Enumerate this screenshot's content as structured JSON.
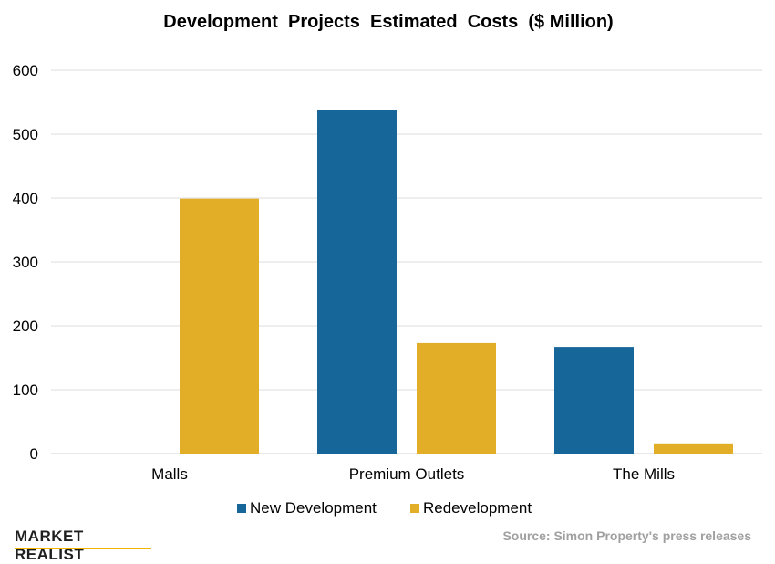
{
  "chart_data": {
    "type": "bar",
    "title": "Development  Projects  Estimated  Costs  ($ Million)",
    "categories": [
      "Malls",
      "Premium Outlets",
      "The Mills"
    ],
    "series": [
      {
        "name": "New Development",
        "values": [
          0,
          538,
          167
        ],
        "color": "#17669a"
      },
      {
        "name": "Redevelopment",
        "values": [
          399,
          173,
          16
        ],
        "color": "#e2ae27"
      }
    ],
    "ylim": [
      0,
      600
    ],
    "yticks": [
      "0",
      "100",
      "200",
      "300",
      "400",
      "500",
      "600"
    ],
    "grid": true,
    "legend": "bottom-center"
  },
  "footer": {
    "logo": "MARKET REALIST",
    "source": "Source: Simon Property's press releases"
  }
}
